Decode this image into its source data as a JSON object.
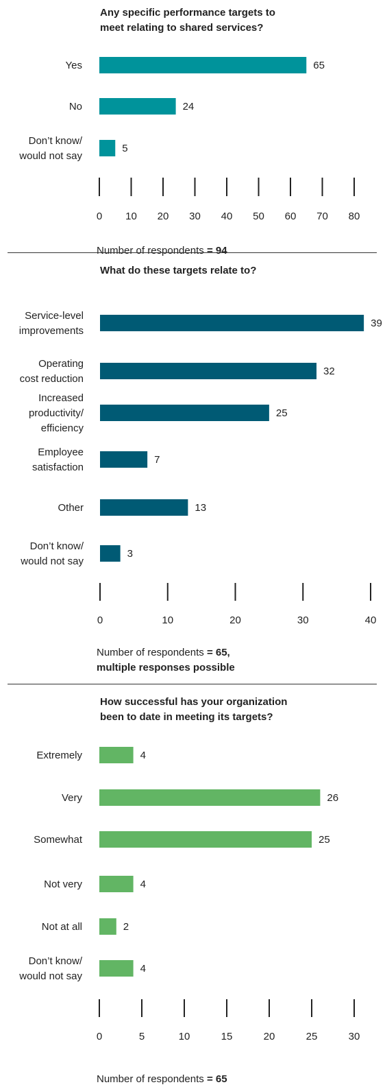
{
  "chart_data": [
    {
      "type": "bar",
      "orientation": "horizontal",
      "title": "Any specific performance targets to\nmeet relating to shared services?",
      "categories": [
        "Yes",
        "No",
        "Don’t know/\nwould not say"
      ],
      "values": [
        65,
        24,
        5
      ],
      "xlim": [
        0,
        80
      ],
      "ticks": [
        0,
        10,
        20,
        30,
        40,
        50,
        60,
        70,
        80
      ],
      "note_prefix": "Number of respondents",
      "note_value": "= 94",
      "note_value2": "",
      "color": "#00939B"
    },
    {
      "type": "bar",
      "orientation": "horizontal",
      "title": "What do these targets relate to?",
      "categories": [
        "Service-level\nimprovements",
        "Operating\ncost reduction",
        "Increased\nproductivity/\nefficiency",
        "Employee\nsatisfaction",
        "Other",
        "Don’t know/\nwould not say"
      ],
      "values": [
        39,
        32,
        25,
        7,
        13,
        3
      ],
      "xlim": [
        0,
        40
      ],
      "ticks": [
        0,
        10,
        20,
        30,
        40
      ],
      "note_prefix": "Number of respondents",
      "note_value": "= 65,",
      "note_value2": "multiple responses possible",
      "color": "#005A74"
    },
    {
      "type": "bar",
      "orientation": "horizontal",
      "title": "How successful has your organization\nbeen to date in meeting its targets?",
      "categories": [
        "Extremely",
        "Very",
        "Somewhat",
        "Not very",
        "Not at all",
        "Don’t know/\nwould not say"
      ],
      "values": [
        4,
        26,
        25,
        4,
        2,
        4
      ],
      "xlim": [
        0,
        30
      ],
      "ticks": [
        0,
        5,
        10,
        15,
        20,
        25,
        30
      ],
      "note_prefix": "Number of respondents",
      "note_value": "= 65",
      "note_value2": "",
      "color": "#62B564"
    }
  ]
}
